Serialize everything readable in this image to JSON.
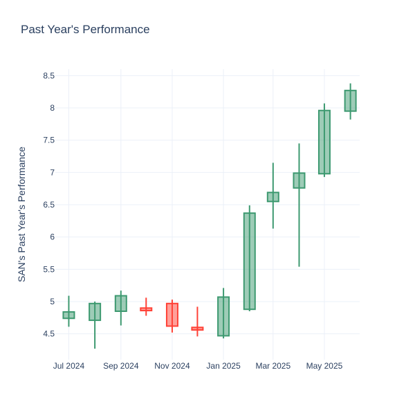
{
  "chart_data": {
    "type": "candlestick",
    "title": "Past Year's Performance",
    "xlabel": "",
    "ylabel": "SAN's Past Year's Performance",
    "ylim": [
      4.1,
      8.6
    ],
    "xlim": [
      "2024-06-15",
      "2025-06-12"
    ],
    "grid": true,
    "legend": "none",
    "x_ticks": [
      {
        "date": "2024-07-01",
        "label": "Jul 2024"
      },
      {
        "date": "2024-09-01",
        "label": "Sep 2024"
      },
      {
        "date": "2024-11-01",
        "label": "Nov 2024"
      },
      {
        "date": "2025-01-01",
        "label": "Jan 2025"
      },
      {
        "date": "2025-03-01",
        "label": "Mar 2025"
      },
      {
        "date": "2025-05-01",
        "label": "May 2025"
      }
    ],
    "y_ticks": [
      4.5,
      5,
      5.5,
      6,
      6.5,
      7,
      7.5,
      8,
      8.5
    ],
    "y_tick_labels": [
      "4.5",
      "5",
      "5.5",
      "6",
      "6.5",
      "7",
      "7.5",
      "8",
      "8.5"
    ],
    "colors": {
      "increasing_line": "#3d9970",
      "increasing_fill": "rgba(61,153,112,0.5)",
      "decreasing_line": "#ff4136",
      "decreasing_fill": "rgba(255,65,54,0.5)",
      "grid": "#ebf0f8",
      "text": "#2a3f5f"
    },
    "candles": [
      {
        "date": "2024-07-01",
        "open": 4.74,
        "high": 5.09,
        "low": 4.61,
        "close": 4.84
      },
      {
        "date": "2024-08-01",
        "open": 4.71,
        "high": 5.0,
        "low": 4.27,
        "close": 4.97
      },
      {
        "date": "2024-09-01",
        "open": 4.85,
        "high": 5.17,
        "low": 4.63,
        "close": 5.09
      },
      {
        "date": "2024-10-01",
        "open": 4.9,
        "high": 5.06,
        "low": 4.78,
        "close": 4.86
      },
      {
        "date": "2024-11-01",
        "open": 4.97,
        "high": 5.03,
        "low": 4.52,
        "close": 4.62
      },
      {
        "date": "2024-12-01",
        "open": 4.6,
        "high": 4.92,
        "low": 4.46,
        "close": 4.56
      },
      {
        "date": "2025-01-01",
        "open": 4.47,
        "high": 5.21,
        "low": 4.43,
        "close": 5.07
      },
      {
        "date": "2025-02-01",
        "open": 4.88,
        "high": 6.49,
        "low": 4.85,
        "close": 6.37
      },
      {
        "date": "2025-03-01",
        "open": 6.55,
        "high": 7.15,
        "low": 6.13,
        "close": 6.69
      },
      {
        "date": "2025-04-01",
        "open": 6.76,
        "high": 7.45,
        "low": 5.54,
        "close": 6.99
      },
      {
        "date": "2025-05-01",
        "open": 6.98,
        "high": 8.07,
        "low": 6.93,
        "close": 7.96
      },
      {
        "date": "2025-06-01",
        "open": 7.95,
        "high": 8.38,
        "low": 7.82,
        "close": 8.27
      }
    ]
  }
}
